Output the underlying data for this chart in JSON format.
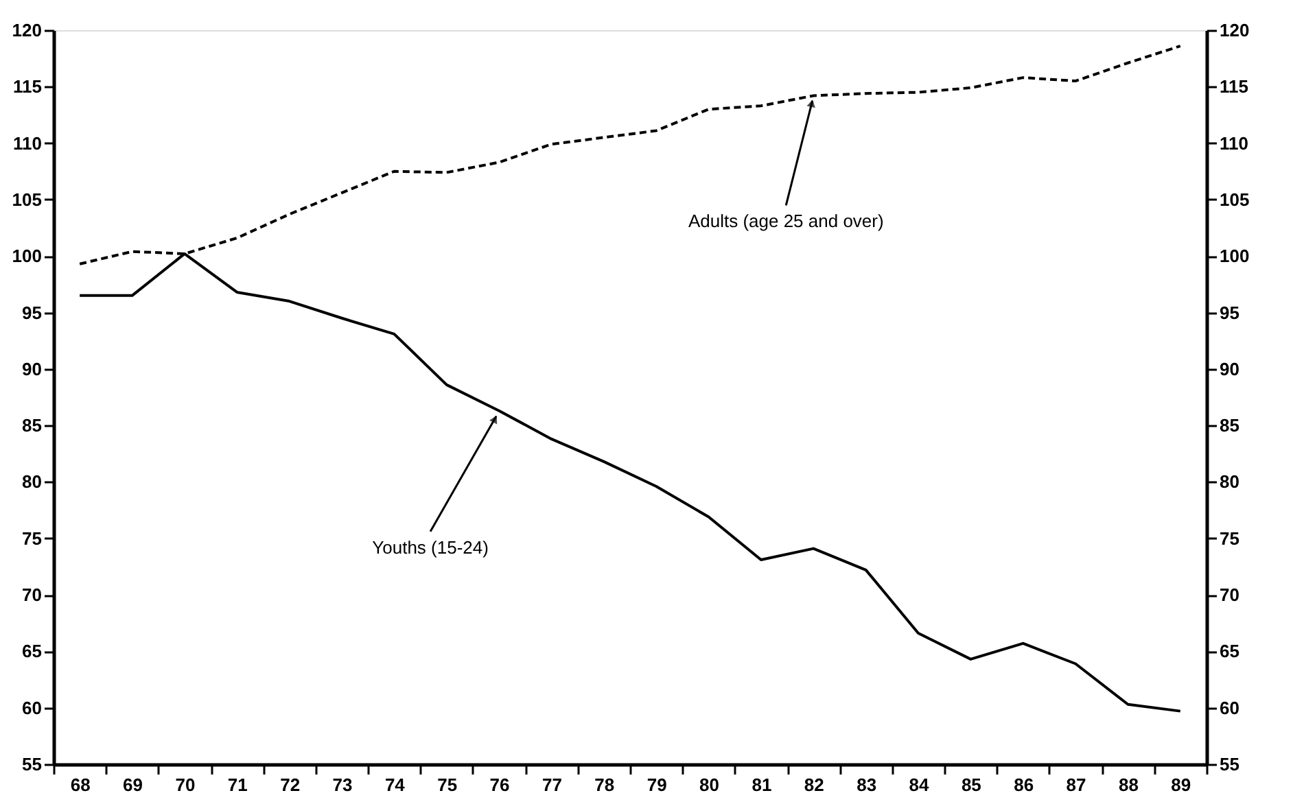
{
  "chart_data": {
    "type": "line",
    "categories": [
      "68",
      "69",
      "70",
      "71",
      "72",
      "73",
      "74",
      "75",
      "76",
      "77",
      "78",
      "79",
      "80",
      "81",
      "82",
      "83",
      "84",
      "85",
      "86",
      "87",
      "88",
      "89"
    ],
    "series": [
      {
        "color": "#000000",
        "line_style": "dashed",
        "values": [
          99.3,
          100.4,
          100.2,
          101.6,
          103.7,
          105.6,
          107.5,
          107.4,
          108.3,
          109.9,
          110.5,
          111.1,
          113.0,
          113.3,
          114.2,
          114.4,
          114.5,
          114.9,
          115.8,
          115.5,
          117.1,
          118.6
        ]
      },
      {
        "color": "#000000",
        "line_style": "solid",
        "values": [
          96.5,
          96.5,
          100.2,
          96.8,
          96.0,
          94.5,
          93.1,
          88.6,
          86.3,
          83.8,
          81.8,
          79.6,
          76.9,
          73.1,
          74.1,
          72.2,
          66.6,
          64.3,
          65.7,
          63.9,
          60.3,
          59.7
        ]
      }
    ],
    "ylim": [
      55,
      120
    ],
    "yticks": [
      55,
      60,
      65,
      70,
      75,
      80,
      85,
      90,
      95,
      100,
      105,
      110,
      115,
      120
    ],
    "y2lim": [
      55,
      120
    ],
    "y2ticks": [
      55,
      60,
      65,
      70,
      75,
      80,
      85,
      90,
      95,
      100,
      105,
      110,
      115,
      120
    ],
    "annotations": [
      {
        "text": "Adults (age 25 and over)",
        "x": "82",
        "y": 114.2
      },
      {
        "text": "Youths (15-24)",
        "x": "76",
        "y": 86.3
      }
    ],
    "grid": false,
    "marker": "none"
  }
}
